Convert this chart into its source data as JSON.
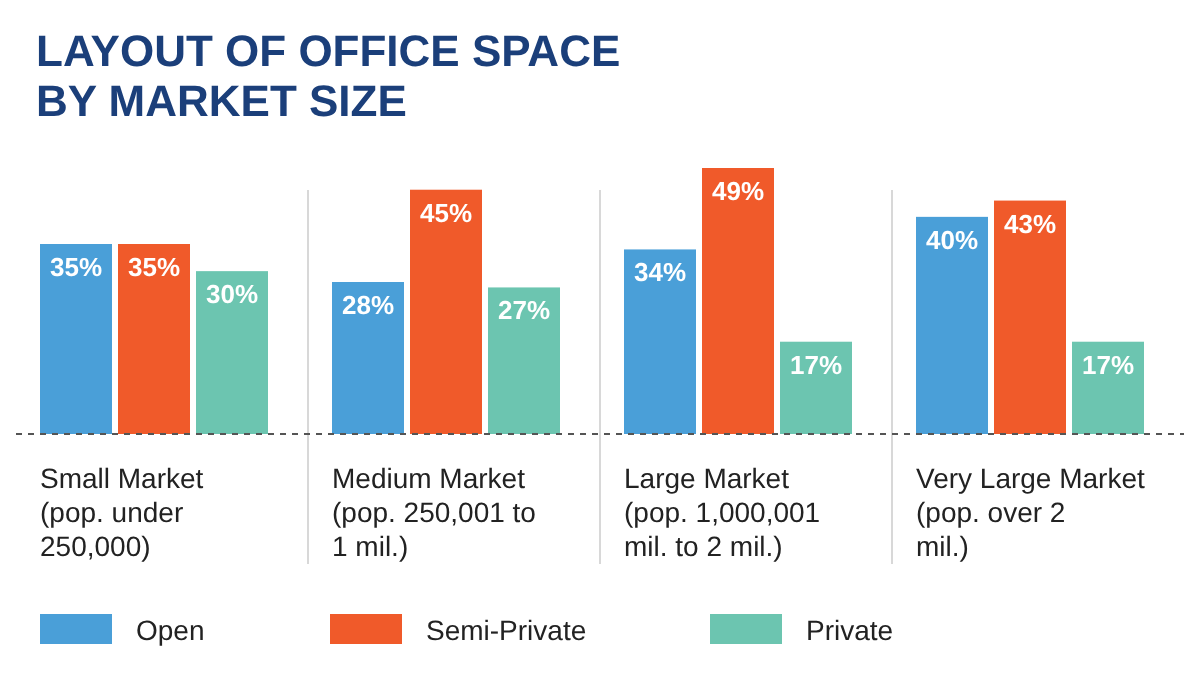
{
  "chart_data": {
    "type": "bar",
    "title": "LAYOUT OF OFFICE SPACE BY MARKET SIZE",
    "categories": [
      "Small Market (pop. under 250,000)",
      "Medium Market (pop. 250,001 to 1 mil.)",
      "Large Market (pop. 1,000,001 mil. to 2 mil.)",
      "Very Large Market (pop. over 2 mil.)"
    ],
    "series": [
      {
        "name": "Open",
        "color": "#4a9fd8",
        "values": [
          35,
          28,
          34,
          40
        ],
        "value_labels": [
          "35%",
          "28%",
          "34%",
          "40%"
        ]
      },
      {
        "name": "Semi-Private",
        "color": "#f05a2a",
        "values": [
          35,
          45,
          49,
          43
        ],
        "value_labels": [
          "35%",
          "45%",
          "49%",
          "43%"
        ]
      },
      {
        "name": "Private",
        "color": "#6cc5b0",
        "values": [
          30,
          27,
          17,
          17
        ],
        "value_labels": [
          "30%",
          "27%",
          "17%",
          "17%"
        ]
      }
    ],
    "legend": "bottom",
    "grid": false
  }
}
